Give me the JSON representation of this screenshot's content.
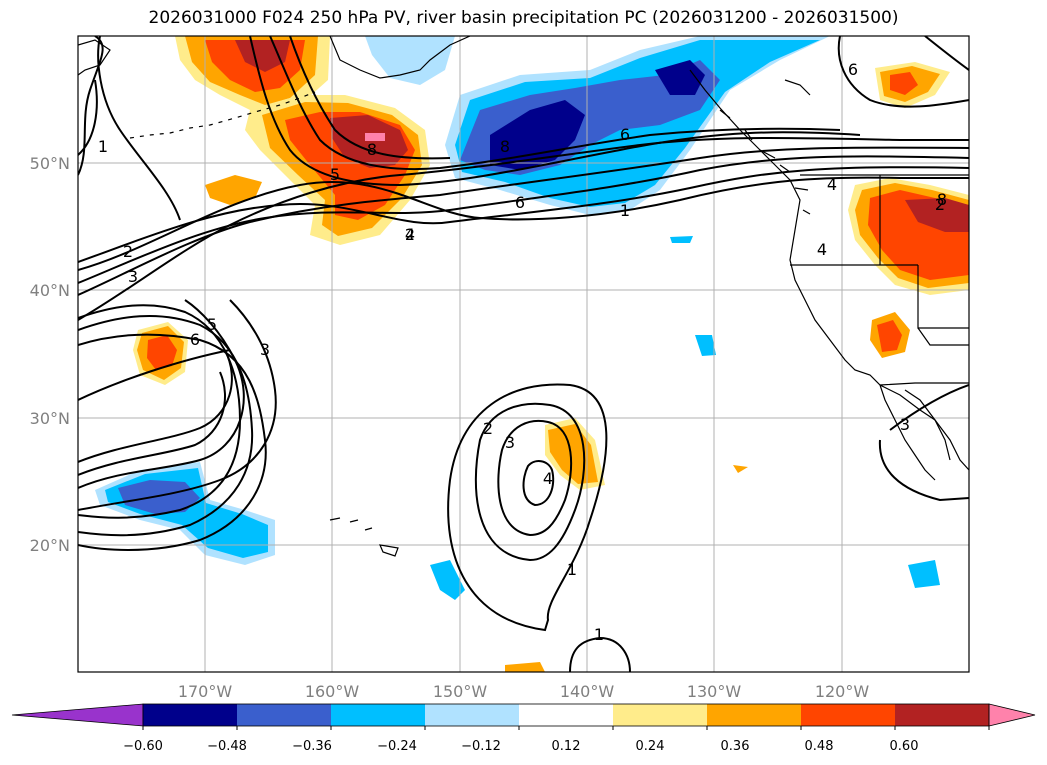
{
  "title": "2026031000 F024 250 hPa PV, river basin precipitation PC (2026031200 - 2026031500)",
  "axes": {
    "lon_labels": [
      "170°W",
      "160°W",
      "150°W",
      "140°W",
      "130°W",
      "120°W"
    ],
    "lat_labels": [
      "50°N",
      "40°N",
      "30°N",
      "20°N"
    ],
    "grid": true
  },
  "colorbar": {
    "extend": "both",
    "colors": [
      "#9933cc",
      "#00008b",
      "#3a5fcd",
      "#00bfff",
      "#b0e2ff",
      "#ffffff",
      "#ffec8b",
      "#ffa500",
      "#ff4500",
      "#b22222",
      "#ff82ab"
    ],
    "tick_labels": [
      "−0.60",
      "−0.48",
      "−0.36",
      "−0.24",
      "−0.12",
      "0.12",
      "0.24",
      "0.36",
      "0.48",
      "0.60"
    ]
  },
  "contour_labels": [
    "1",
    "2",
    "3",
    "4",
    "5",
    "6",
    "8",
    "2",
    "4",
    "5",
    "6",
    "3",
    "2",
    "3",
    "4",
    "1",
    "1",
    "6",
    "8",
    "1",
    "2",
    "3",
    "4",
    "6",
    "8"
  ],
  "colors": {
    "frame": "#000000",
    "grid": "#b0b0b0",
    "contour": "#000000"
  }
}
